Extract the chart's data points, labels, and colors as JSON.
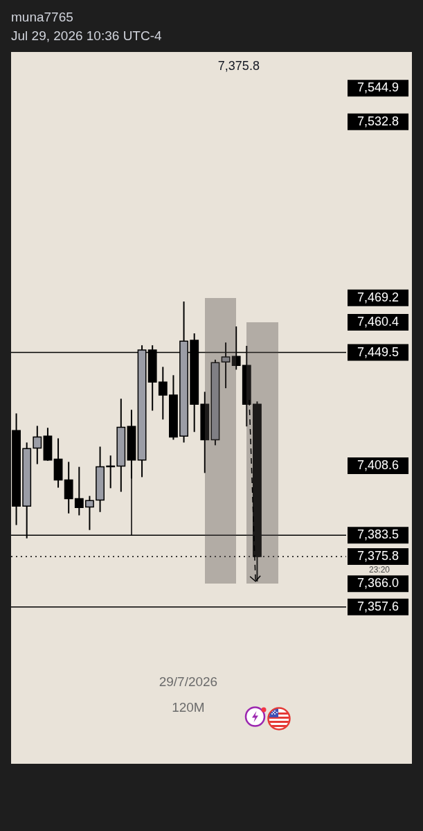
{
  "chart_data": {
    "type": "candlestick",
    "title": "muna7765",
    "subtitle": "Jul 29, 2026 10:36 UTC-4",
    "categories": [
      null,
      null,
      null,
      null,
      null,
      null,
      null,
      null,
      null,
      null,
      null,
      null,
      null,
      null,
      null,
      null,
      null,
      null,
      null,
      null,
      null,
      null,
      null,
      null,
      null,
      null,
      null,
      null,
      null,
      null,
      null,
      null
    ],
    "ohlc": [
      [
        7421.3,
        7427.5,
        7387.2,
        7394.0
      ],
      [
        7394.0,
        7417.0,
        7382.4,
        7414.8
      ],
      [
        7415.0,
        7423.0,
        7409.2,
        7419.0
      ],
      [
        7419.3,
        7422.3,
        7410.4,
        7410.7
      ],
      [
        7411.0,
        7418.5,
        7400.7,
        7403.5
      ],
      [
        7403.5,
        7410.0,
        7391.4,
        7396.7
      ],
      [
        7396.7,
        7408.2,
        7390.7,
        7393.5
      ],
      [
        7393.7,
        7397.7,
        7385.4,
        7396.0
      ],
      [
        7396.2,
        7415.5,
        7391.9,
        7408.2
      ],
      [
        7408.5,
        7412.3,
        7400.5,
        7408.5
      ],
      [
        7408.5,
        7432.8,
        7399.2,
        7422.5
      ],
      [
        7422.8,
        7428.8,
        7404.0,
        7410.7
      ],
      [
        7410.7,
        7452.1,
        7404.5,
        7450.4
      ],
      [
        7450.4,
        7452.1,
        7428.5,
        7438.8
      ],
      [
        7438.8,
        7444.3,
        7425.3,
        7434.1
      ],
      [
        7434.1,
        7441.3,
        7418.0,
        7419.0
      ],
      [
        7419.3,
        7467.9,
        7417.0,
        7453.6
      ],
      [
        7453.9,
        7456.4,
        7420.8,
        7430.8
      ],
      [
        7430.8,
        7435.3,
        7406.0,
        7418.0
      ],
      [
        7418.0,
        7446.9,
        7416.0,
        7445.8
      ],
      [
        7446.1,
        7453.1,
        7436.6,
        7447.9
      ],
      [
        7448.1,
        7458.9,
        7443.3,
        7444.8
      ],
      [
        7444.8,
        7451.9,
        7422.8,
        7430.8
      ],
      [
        7430.8,
        7431.8,
        7366.8,
        7375.8
      ],
      null,
      null,
      null,
      null,
      null,
      null,
      null,
      null
    ],
    "colors": [
      "#000000",
      "#9b9da6",
      "#9b9da6",
      "#000000",
      "#000000",
      "#000000",
      "#000000",
      "#9b9da6",
      "#9b9da6",
      "#000000",
      "#9b9da6",
      "#000000",
      "#9b9da6",
      "#000000",
      "#000000",
      "#000000",
      "#9b9da6",
      "#000000",
      "#000000",
      "#9b9da6",
      "#9b9da6",
      "#000000",
      "#000000",
      "#000000",
      null,
      null,
      null,
      null,
      null,
      null,
      null,
      null
    ],
    "ylim": [
      7301,
      7558
    ],
    "yticks": [
      {
        "value": 7544.9,
        "label": "7,544.9"
      },
      {
        "value": 7532.8,
        "label": "7,532.8"
      },
      {
        "value": 7469.2,
        "label": "7,469.2"
      },
      {
        "value": 7460.4,
        "label": "7,460.4"
      },
      {
        "value": 7449.5,
        "label": "7,449.5"
      },
      {
        "value": 7408.6,
        "label": "7,408.6"
      },
      {
        "value": 7383.5,
        "label": "7,383.5"
      },
      {
        "value": 7375.8,
        "label": "7,375.8"
      },
      {
        "value": 7366.0,
        "label": "7,366.0"
      },
      {
        "value": 7357.6,
        "label": "7,357.6"
      }
    ],
    "ref_lines": [
      {
        "axis": "y",
        "value": 7357.6,
        "color": "#000000"
      },
      {
        "axis": "y",
        "value": 7383.5,
        "color": "#000000"
      },
      {
        "axis": "y",
        "value": 7449.5,
        "color": "#000000"
      },
      {
        "axis": "y",
        "value": 7375.8,
        "color": "#000000",
        "line_style": "dotted"
      }
    ],
    "annotations": [
      "7,375.8",
      "23:20",
      "29/7/2026",
      "120M"
    ],
    "tick_labels": "y"
  }
}
